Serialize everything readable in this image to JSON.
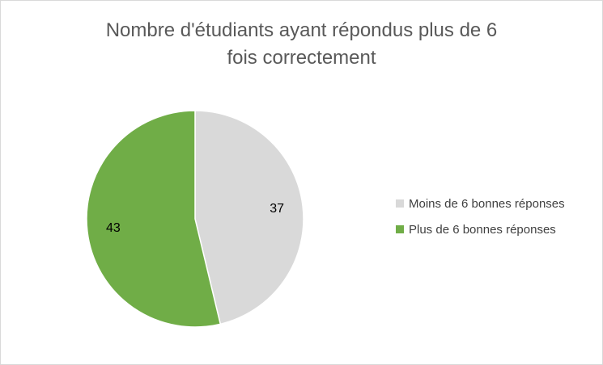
{
  "chart_data": {
    "type": "pie",
    "title_lines": [
      "Nombre d'étudiants ayant répondus plus de 6",
      "fois correctement"
    ],
    "categories": [
      "Moins de 6 bonnes réponses",
      "Plus de 6 bonnes réponses"
    ],
    "values": [
      37,
      43
    ],
    "colors": [
      "#d9d9d9",
      "#70ad47"
    ],
    "data_labels": [
      "37",
      "43"
    ],
    "legend_position": "right"
  }
}
